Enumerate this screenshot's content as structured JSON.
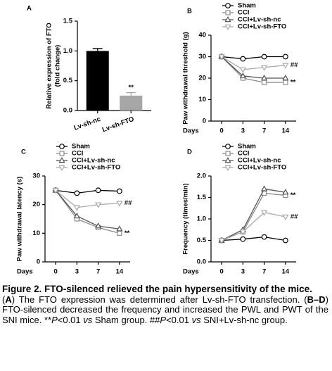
{
  "chart_data": [
    {
      "type": "bar",
      "panel": "A",
      "ylabel": [
        "Relative expression of FTO",
        "(fold change)"
      ],
      "categories": [
        "Lv-sh-nc",
        "Lv-sh-FTO"
      ],
      "values": [
        1.0,
        0.25
      ],
      "errors": [
        0.04,
        0.05
      ],
      "colors": [
        "#000000",
        "#a6a6a6"
      ],
      "annotations": [
        null,
        "**"
      ],
      "ylim": [
        0,
        1.5
      ],
      "yticks": [
        {
          "value": 0,
          "label": "0.0"
        },
        0.5,
        {
          "value": 1,
          "label": "1.0"
        },
        1.5
      ]
    },
    {
      "type": "line",
      "panel": "B",
      "ylabel": "Paw withdrawal threshold (g)",
      "xlabel": "Days",
      "legend": "top",
      "categories": [
        "0",
        "3",
        "7",
        "14"
      ],
      "ylim": [
        0,
        40
      ],
      "yticks": [
        0,
        10,
        20,
        30,
        40
      ],
      "series": [
        {
          "name": "Sham",
          "color": "#000000",
          "marker": "circle",
          "values": [
            30,
            29,
            30,
            30
          ]
        },
        {
          "name": "CCI",
          "color": "#8c8c8c",
          "marker": "square",
          "values": [
            30,
            20,
            18,
            18
          ],
          "annotation": "**"
        },
        {
          "name": "CCI+Lv-sh-nc",
          "color": "#555555",
          "marker": "triangle-up",
          "values": [
            30,
            21,
            20,
            20
          ]
        },
        {
          "name": "CCI+Lv-sh-FTO",
          "color": "#aaaaaa",
          "marker": "triangle-down",
          "values": [
            30,
            24,
            25,
            26
          ],
          "annotation": "##"
        }
      ]
    },
    {
      "type": "line",
      "panel": "C",
      "ylabel": "Paw withdrawal latency (s)",
      "xlabel": "Days",
      "legend": "top",
      "categories": [
        "0",
        "3",
        "7",
        "14"
      ],
      "ylim": [
        0,
        30
      ],
      "yticks": [
        0,
        10,
        20,
        30
      ],
      "series": [
        {
          "name": "Sham",
          "color": "#000000",
          "marker": "circle",
          "values": [
            25,
            24,
            25,
            24.7
          ]
        },
        {
          "name": "CCI",
          "color": "#8c8c8c",
          "marker": "square",
          "values": [
            25,
            15,
            12,
            10
          ],
          "annotation": "**"
        },
        {
          "name": "CCI+Lv-sh-nc",
          "color": "#555555",
          "marker": "triangle-up",
          "values": [
            25,
            16,
            12.5,
            11.5
          ]
        },
        {
          "name": "CCI+Lv-sh-FTO",
          "color": "#aaaaaa",
          "marker": "triangle-down",
          "values": [
            25,
            19,
            20,
            20.5
          ],
          "annotation": "##"
        }
      ]
    },
    {
      "type": "line",
      "panel": "D",
      "ylabel": "Frequency (times/min)",
      "xlabel": "Days",
      "legend": "top",
      "categories": [
        "0",
        "3",
        "7",
        "14"
      ],
      "ylim": [
        0,
        2
      ],
      "yticks": [
        {
          "value": 0,
          "label": "0.0"
        },
        0.5,
        {
          "value": 1,
          "label": "1.0"
        },
        1.5,
        {
          "value": 2,
          "label": "2.0"
        }
      ],
      "series": [
        {
          "name": "Sham",
          "color": "#000000",
          "marker": "circle",
          "values": [
            0.5,
            0.53,
            0.58,
            0.5
          ]
        },
        {
          "name": "CCI",
          "color": "#8c8c8c",
          "marker": "square",
          "values": [
            0.5,
            0.7,
            1.6,
            1.55
          ],
          "annotation": "**"
        },
        {
          "name": "CCI+Lv-sh-nc",
          "color": "#555555",
          "marker": "triangle-up",
          "values": [
            0.5,
            0.75,
            1.7,
            1.62
          ]
        },
        {
          "name": "CCI+Lv-sh-FTO",
          "color": "#aaaaaa",
          "marker": "triangle-down",
          "values": [
            0.5,
            0.7,
            1.15,
            1.05
          ],
          "annotation": "##"
        }
      ]
    }
  ],
  "caption": {
    "title": "Figure 2. FTO-silenced relieved the pain hypersensitivity of the mice.",
    "body": [
      "(",
      "A",
      ") The FTO expression was determined after Lv-sh-FTO transfection. (",
      "B–D",
      ") FTO-silenced decreased the frequency and increased the PWL and PWT of the SNI mice. **",
      "P",
      "<0.01 ",
      "vs",
      " Sham group. ##",
      "P",
      "<0.01 ",
      "vs",
      " SNI+Lv-sh-nc group."
    ]
  }
}
